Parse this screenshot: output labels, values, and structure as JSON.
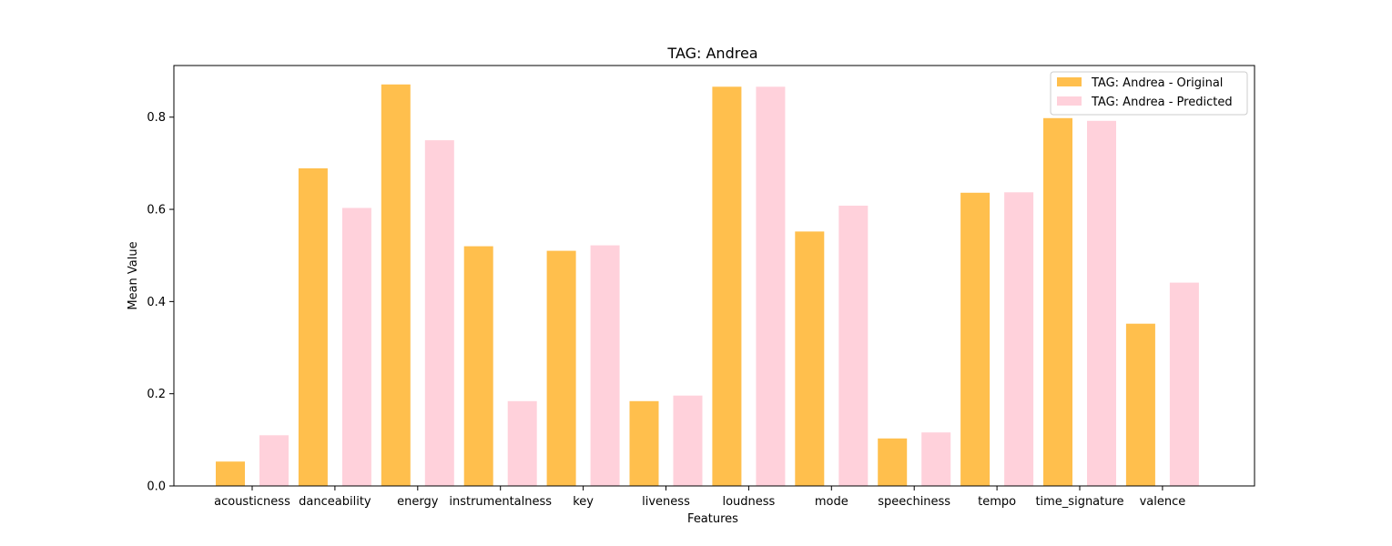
{
  "chart_data": {
    "type": "bar",
    "title": "TAG: Andrea",
    "xlabel": "Features",
    "ylabel": "Mean Value",
    "categories": [
      "acousticness",
      "danceability",
      "energy",
      "instrumentalness",
      "key",
      "liveness",
      "loudness",
      "mode",
      "speechiness",
      "tempo",
      "time_signature",
      "valence"
    ],
    "series": [
      {
        "name": "TAG: Andrea - Original",
        "color": "#ffbf4d",
        "values": [
          0.053,
          0.689,
          0.871,
          0.52,
          0.51,
          0.184,
          0.866,
          0.552,
          0.103,
          0.636,
          0.798,
          0.352
        ]
      },
      {
        "name": "TAG: Andrea - Predicted",
        "color": "#ffd1db",
        "values": [
          0.11,
          0.603,
          0.75,
          0.184,
          0.522,
          0.196,
          0.866,
          0.608,
          0.116,
          0.637,
          0.792,
          0.441
        ]
      }
    ],
    "ylim": [
      0,
      0.912
    ],
    "yticks": [
      0.0,
      0.2,
      0.4,
      0.6,
      0.8
    ],
    "ytick_labels": [
      "0.0",
      "0.2",
      "0.4",
      "0.6",
      "0.8"
    ],
    "grid": false,
    "legend_position": "top-right"
  }
}
